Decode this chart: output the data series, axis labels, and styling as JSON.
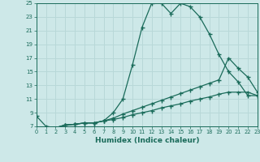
{
  "xlabel": "Humidex (Indice chaleur)",
  "ylabel": "",
  "xlim": [
    0,
    23
  ],
  "ylim": [
    7,
    25
  ],
  "xticks": [
    0,
    1,
    2,
    3,
    4,
    5,
    6,
    7,
    8,
    9,
    10,
    11,
    12,
    13,
    14,
    15,
    16,
    17,
    18,
    19,
    20,
    21,
    22,
    23
  ],
  "yticks": [
    7,
    9,
    11,
    13,
    15,
    17,
    19,
    21,
    23,
    25
  ],
  "bg_color": "#cde8e8",
  "grid_color": "#b8d8d8",
  "line_color": "#1a6b5a",
  "curve1_x": [
    0,
    1,
    2,
    3,
    4,
    5,
    6,
    7,
    8,
    9,
    10,
    11,
    12,
    13,
    14,
    15,
    16,
    17,
    18,
    19,
    20,
    21,
    22,
    23
  ],
  "curve1_y": [
    8.5,
    7.0,
    6.8,
    7.2,
    7.3,
    7.5,
    7.5,
    7.8,
    9.0,
    11.0,
    16.0,
    21.5,
    25.0,
    25.0,
    23.5,
    25.0,
    24.5,
    23.0,
    20.5,
    17.5,
    15.0,
    13.5,
    11.5,
    11.5
  ],
  "curve2_x": [
    2,
    3,
    4,
    5,
    6,
    7,
    8,
    9,
    10,
    11,
    12,
    13,
    14,
    15,
    16,
    17,
    18,
    19,
    20,
    21,
    22,
    23
  ],
  "curve2_y": [
    6.8,
    7.2,
    7.3,
    7.5,
    7.5,
    7.8,
    8.2,
    8.8,
    9.3,
    9.8,
    10.3,
    10.8,
    11.3,
    11.8,
    12.3,
    12.8,
    13.3,
    13.8,
    17.0,
    15.5,
    14.2,
    12.0
  ],
  "curve3_x": [
    2,
    3,
    4,
    5,
    6,
    7,
    8,
    9,
    10,
    11,
    12,
    13,
    14,
    15,
    16,
    17,
    18,
    19,
    20,
    21,
    22,
    23
  ],
  "curve3_y": [
    6.8,
    7.2,
    7.3,
    7.5,
    7.5,
    7.8,
    8.0,
    8.3,
    8.7,
    9.0,
    9.3,
    9.7,
    10.0,
    10.3,
    10.7,
    11.0,
    11.3,
    11.7,
    12.0,
    12.0,
    12.0,
    11.5
  ]
}
